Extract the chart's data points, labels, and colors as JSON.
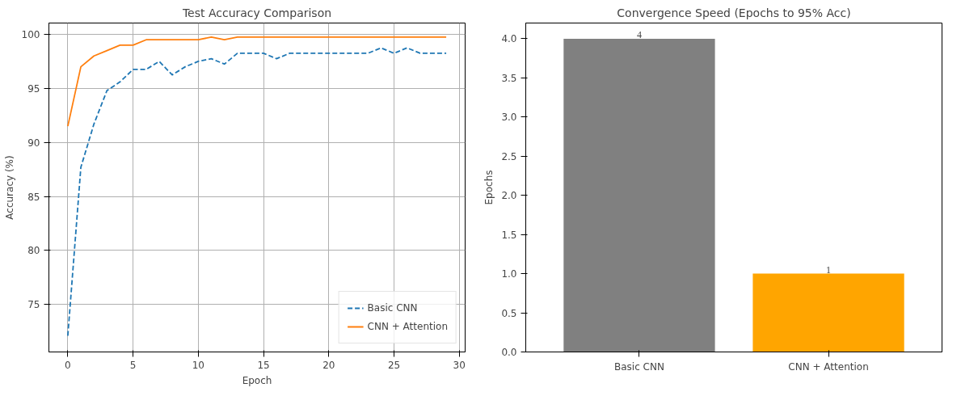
{
  "chart_data": [
    {
      "type": "line",
      "title": "Test Accuracy Comparison",
      "xlabel": "Epoch",
      "ylabel": "Accuracy (%)",
      "x": [
        0,
        1,
        2,
        3,
        4,
        5,
        6,
        7,
        8,
        9,
        10,
        11,
        12,
        13,
        14,
        15,
        16,
        17,
        18,
        19,
        20,
        21,
        22,
        23,
        24,
        25,
        26,
        27,
        28,
        29
      ],
      "series": [
        {
          "name": "Basic CNN",
          "color": "#1f77b4",
          "line_style": "dashed",
          "values": [
            72.1,
            87.7,
            91.7,
            94.8,
            95.6,
            96.75,
            96.75,
            97.5,
            96.25,
            97.0,
            97.5,
            97.75,
            97.25,
            98.25,
            98.25,
            98.25,
            97.75,
            98.25,
            98.25,
            98.25,
            98.25,
            98.25,
            98.25,
            98.25,
            98.75,
            98.25,
            98.75,
            98.25,
            98.25,
            98.25
          ]
        },
        {
          "name": "CNN + Attention",
          "color": "#ff7f0e",
          "line_style": "solid",
          "values": [
            91.5,
            97.0,
            98.0,
            98.5,
            99.0,
            99.0,
            99.5,
            99.5,
            99.5,
            99.5,
            99.5,
            99.75,
            99.5,
            99.75,
            99.75,
            99.75,
            99.75,
            99.75,
            99.75,
            99.75,
            99.75,
            99.75,
            99.75,
            99.75,
            99.75,
            99.75,
            99.75,
            99.75,
            99.75,
            99.75
          ]
        }
      ],
      "xlim": [
        -1.45,
        30.45
      ],
      "xticks": [
        0,
        5,
        10,
        15,
        20,
        25,
        30
      ],
      "ylim": [
        70.6,
        101.05
      ],
      "yticks": [
        75,
        80,
        85,
        90,
        95,
        100
      ],
      "grid": true,
      "legend": "bottom right"
    },
    {
      "type": "bar",
      "title": "Convergence Speed (Epochs to 95% Acc)",
      "ylabel": "Epochs",
      "categories": [
        "Basic CNN",
        "CNN + Attention"
      ],
      "values": [
        4,
        1
      ],
      "colors": [
        "#808080",
        "#ffa500"
      ],
      "ylim": [
        0,
        4.2
      ],
      "yticks": [
        {
          "value": 0,
          "label": "0.0"
        },
        {
          "value": 0.5,
          "label": "0.5"
        },
        {
          "value": 1,
          "label": "1.0"
        },
        {
          "value": 1.5,
          "label": "1.5"
        },
        {
          "value": 2,
          "label": "2.0"
        },
        {
          "value": 2.5,
          "label": "2.5"
        },
        {
          "value": 3,
          "label": "3.0"
        },
        {
          "value": 3.5,
          "label": "3.5"
        },
        {
          "value": 4,
          "label": "4.0"
        }
      ],
      "data_labels": true
    }
  ]
}
